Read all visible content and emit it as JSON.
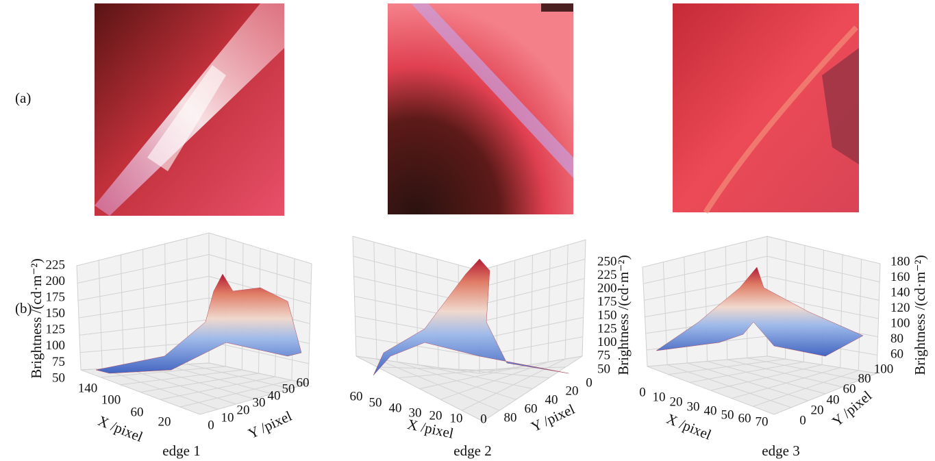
{
  "figure": {
    "row_labels": [
      "(a)",
      "(b)"
    ],
    "panels": [
      {
        "caption": "edge 1",
        "z_label": "Brightness /(cd·m⁻²)",
        "x_label": "X /pixel",
        "y_label": "Y /pixel",
        "z_ticks": [
          225,
          200,
          175,
          150,
          125,
          100,
          75,
          50
        ],
        "x_ticks": [
          140,
          100,
          60,
          20
        ],
        "y_ticks": [
          0,
          10,
          20,
          30,
          40,
          50,
          60
        ]
      },
      {
        "caption": "edge 2",
        "z_label": "Brightness /(cd·m⁻²)",
        "x_label": "X /pixel",
        "y_label": "Y /pixel",
        "z_ticks": [
          250,
          225,
          200,
          175,
          150,
          125,
          100,
          75,
          50
        ],
        "x_ticks": [
          60,
          50,
          40,
          30,
          20,
          10,
          0
        ],
        "y_ticks": [
          80,
          60,
          40,
          20,
          0
        ]
      },
      {
        "caption": "edge 3",
        "z_label": "Brightness /(cd·m⁻²)",
        "x_label": "X /pixel",
        "y_label": "Y /pixel",
        "z_ticks": [
          180,
          160,
          140,
          120,
          100,
          80,
          60
        ],
        "x_ticks": [
          0,
          10,
          20,
          30,
          40,
          50,
          60,
          70
        ],
        "y_ticks": [
          0,
          20,
          40,
          60,
          80,
          100
        ]
      }
    ]
  }
}
